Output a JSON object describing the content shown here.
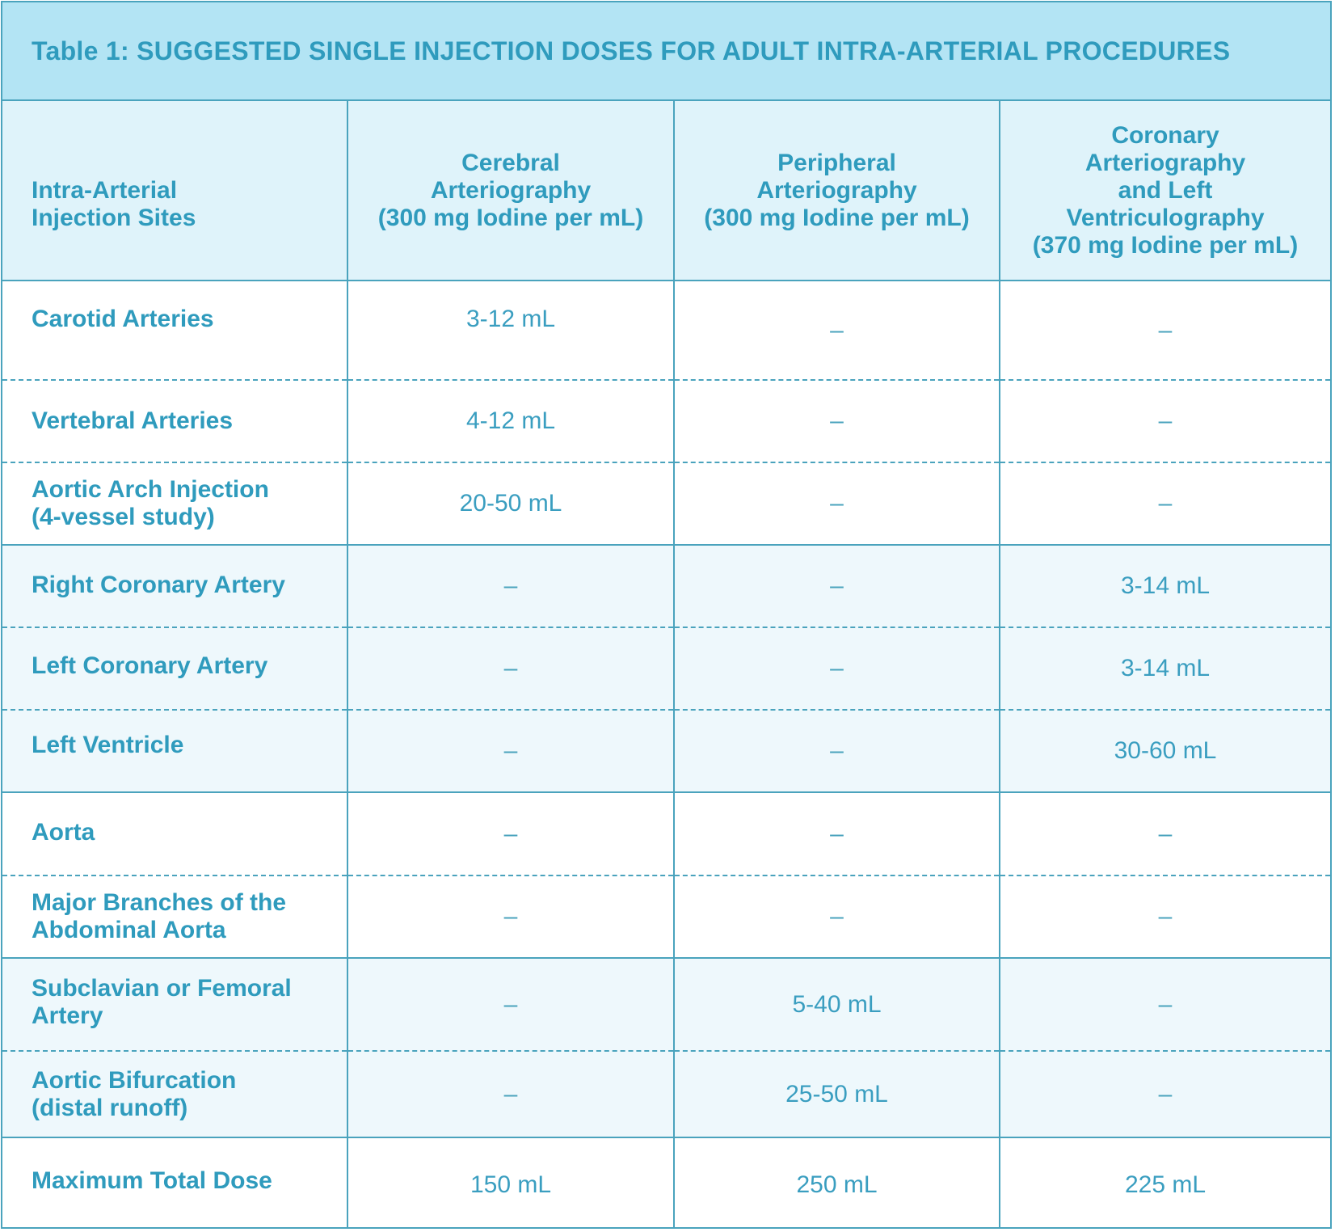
{
  "title": "Table 1: SUGGESTED SINGLE INJECTION DOSES FOR ADULT INTRA-ARTERIAL PROCEDURES",
  "headers": {
    "site": [
      "Intra-Arterial",
      "Injection Sites"
    ],
    "cerebral": [
      "Cerebral",
      "Arteriography",
      "(300 mg Iodine per mL)"
    ],
    "peripheral": [
      "Peripheral",
      "Arteriography",
      "(300 mg Iodine per mL)"
    ],
    "coronary": [
      "Coronary",
      "Arteriography",
      "and Left",
      "Ventriculography",
      "(370 mg Iodine per mL)"
    ]
  },
  "rows": [
    {
      "site": [
        "Carotid Arteries"
      ],
      "cerebral": "3-12 mL",
      "peripheral": "–",
      "coronary": "–"
    },
    {
      "site": [
        "Vertebral Arteries"
      ],
      "cerebral": "4-12 mL",
      "peripheral": "–",
      "coronary": "–"
    },
    {
      "site": [
        "Aortic Arch Injection",
        "(4-vessel study)"
      ],
      "cerebral": "20-50 mL",
      "peripheral": "–",
      "coronary": "–"
    },
    {
      "site": [
        "Right Coronary Artery"
      ],
      "cerebral": "–",
      "peripheral": "–",
      "coronary": "3-14 mL"
    },
    {
      "site": [
        "Left Coronary Artery"
      ],
      "cerebral": "–",
      "peripheral": "–",
      "coronary": "3-14 mL"
    },
    {
      "site": [
        "Left Ventricle"
      ],
      "cerebral": "–",
      "peripheral": "–",
      "coronary": "30-60 mL"
    },
    {
      "site": [
        "Aorta"
      ],
      "cerebral": "–",
      "peripheral": "–",
      "coronary": "–"
    },
    {
      "site": [
        "Major Branches of the",
        "Abdominal Aorta"
      ],
      "cerebral": "–",
      "peripheral": "–",
      "coronary": "–"
    },
    {
      "site": [
        "Subclavian or Femoral",
        "Artery"
      ],
      "cerebral": "–",
      "peripheral": "5-40 mL",
      "coronary": "–"
    },
    {
      "site": [
        "Aortic Bifurcation",
        "(distal runoff)"
      ],
      "cerebral": "–",
      "peripheral": "25-50 mL",
      "coronary": "–"
    },
    {
      "site": [
        "Maximum Total Dose"
      ],
      "cerebral": "150 mL",
      "peripheral": "250 mL",
      "coronary": "225 mL"
    }
  ]
}
